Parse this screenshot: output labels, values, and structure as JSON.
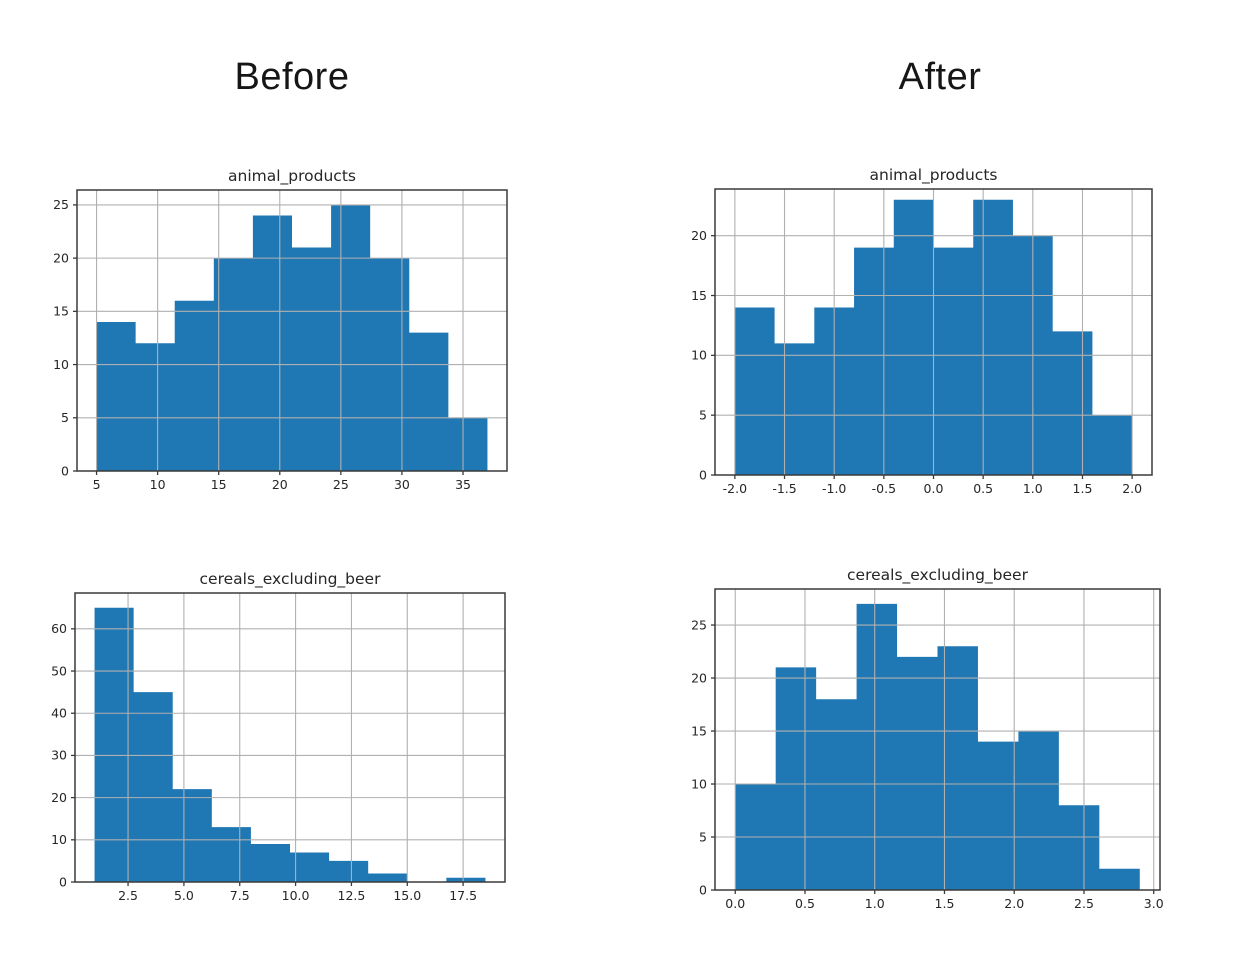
{
  "page": {
    "background": "#ffffff"
  },
  "columns": [
    {
      "label": "Before"
    },
    {
      "label": "After"
    }
  ],
  "colors": {
    "bar": "#1f77b4",
    "grid": "#b0b0b0",
    "spine": "#3a3a3a",
    "text": "#262626",
    "header_text": "#161616"
  },
  "chart_data": [
    {
      "id": "animal-products-before",
      "type": "histogram",
      "column": "Before",
      "title": "animal_products",
      "bin_start": 5.0,
      "bin_width": 3.2,
      "counts": [
        14,
        12,
        16,
        20,
        24,
        21,
        25,
        20,
        13,
        5
      ],
      "xlim": [
        3.4,
        38.6
      ],
      "ylim": [
        0,
        26.4
      ],
      "x_ticks": {
        "values": [
          5,
          10,
          15,
          20,
          25,
          30,
          35
        ],
        "labels": [
          "5",
          "10",
          "15",
          "20",
          "25",
          "30",
          "35"
        ]
      },
      "y_ticks": {
        "values": [
          0,
          5,
          10,
          15,
          20,
          25
        ],
        "labels": [
          "0",
          "5",
          "10",
          "15",
          "20",
          "25"
        ]
      },
      "grid": true
    },
    {
      "id": "animal-products-after",
      "type": "histogram",
      "column": "After",
      "title": "animal_products",
      "bin_start": -2.0,
      "bin_width": 0.4,
      "counts": [
        14,
        11,
        14,
        19,
        23,
        19,
        23,
        20,
        12,
        5
      ],
      "xlim": [
        -2.2,
        2.2
      ],
      "ylim": [
        0,
        23.9
      ],
      "x_ticks": {
        "values": [
          -2.0,
          -1.5,
          -1.0,
          -0.5,
          0.0,
          0.5,
          1.0,
          1.5,
          2.0
        ],
        "labels": [
          "-2.0",
          "-1.5",
          "-1.0",
          "-0.5",
          "0.0",
          "0.5",
          "1.0",
          "1.5",
          "2.0"
        ]
      },
      "y_ticks": {
        "values": [
          0,
          5,
          10,
          15,
          20
        ],
        "labels": [
          "0",
          "5",
          "10",
          "15",
          "20"
        ]
      },
      "grid": true
    },
    {
      "id": "cereals-excluding-beer-before",
      "type": "histogram",
      "column": "Before",
      "title": "cereals_excluding_beer",
      "bin_start": 1.0,
      "bin_width": 1.75,
      "counts": [
        65,
        45,
        22,
        13,
        9,
        7,
        5,
        2,
        0,
        1
      ],
      "xlim": [
        0.125,
        19.375
      ],
      "ylim": [
        0,
        68.5
      ],
      "x_ticks": {
        "values": [
          2.5,
          5.0,
          7.5,
          10.0,
          12.5,
          15.0,
          17.5
        ],
        "labels": [
          "2.5",
          "5.0",
          "7.5",
          "10.0",
          "12.5",
          "15.0",
          "17.5"
        ]
      },
      "y_ticks": {
        "values": [
          0,
          10,
          20,
          30,
          40,
          50,
          60
        ],
        "labels": [
          "0",
          "10",
          "20",
          "30",
          "40",
          "50",
          "60"
        ]
      },
      "grid": true
    },
    {
      "id": "cereals-excluding-beer-after",
      "type": "histogram",
      "column": "After",
      "title": "cereals_excluding_beer",
      "bin_start": 0.0,
      "bin_width": 0.29,
      "counts": [
        10,
        21,
        18,
        27,
        22,
        23,
        14,
        15,
        8,
        2
      ],
      "xlim": [
        -0.145,
        3.045
      ],
      "ylim": [
        0,
        28.4
      ],
      "x_ticks": {
        "values": [
          0.0,
          0.5,
          1.0,
          1.5,
          2.0,
          2.5,
          3.0
        ],
        "labels": [
          "0.0",
          "0.5",
          "1.0",
          "1.5",
          "2.0",
          "2.5",
          "3.0"
        ]
      },
      "y_ticks": {
        "values": [
          0,
          5,
          10,
          15,
          20,
          25
        ],
        "labels": [
          "0",
          "5",
          "10",
          "15",
          "20",
          "25"
        ]
      },
      "grid": true
    }
  ]
}
